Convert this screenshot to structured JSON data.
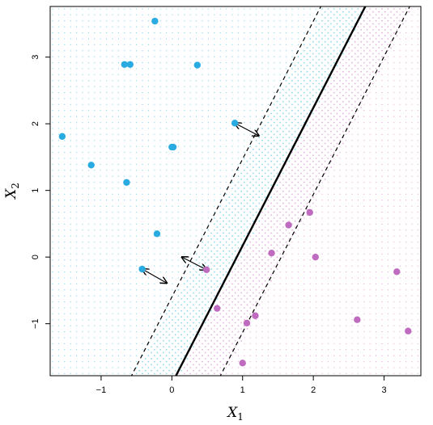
{
  "chart_data": {
    "type": "scatter",
    "title": "",
    "xlabel": "X",
    "xlabel_sub": "1",
    "ylabel": "X",
    "ylabel_sub": "2",
    "xlim": [
      -1.72,
      3.52
    ],
    "ylim": [
      -1.78,
      3.76
    ],
    "xticks": [
      -1,
      0,
      1,
      2,
      3
    ],
    "xtick_labels": [
      "−1",
      "0",
      "1",
      "2",
      "3"
    ],
    "yticks": [
      -1,
      0,
      1,
      2,
      3
    ],
    "ytick_labels": [
      "−1",
      "0",
      "1",
      "2",
      "3"
    ],
    "grid": false,
    "colors": {
      "blue": "#29abe2",
      "purple": "#bf6bbf",
      "blue_region_dot": "#8fd8ec",
      "purple_region_dot": "#e6b2dd",
      "axis": "#000000"
    },
    "hyperplane": {
      "slope": 2.07,
      "intercept": -1.9,
      "margin_intercept_offset": 1.3
    },
    "series": [
      {
        "class": "blue",
        "points": [
          {
            "x": -0.24,
            "y": 3.54
          },
          {
            "x": -0.67,
            "y": 2.89
          },
          {
            "x": -0.59,
            "y": 2.89
          },
          {
            "x": 0.36,
            "y": 2.88
          },
          {
            "x": -1.55,
            "y": 1.81
          },
          {
            "x": 0.0,
            "y": 1.65
          },
          {
            "x": 0.02,
            "y": 1.65
          },
          {
            "x": -1.14,
            "y": 1.38
          },
          {
            "x": -0.64,
            "y": 1.12
          },
          {
            "x": -0.21,
            "y": 0.35
          },
          {
            "x": -0.42,
            "y": -0.18
          },
          {
            "x": 0.89,
            "y": 2.01
          }
        ]
      },
      {
        "class": "purple",
        "points": [
          {
            "x": 1.95,
            "y": 0.67
          },
          {
            "x": 1.65,
            "y": 0.48
          },
          {
            "x": 1.41,
            "y": 0.06
          },
          {
            "x": 2.03,
            "y": 0.0
          },
          {
            "x": 0.49,
            "y": -0.19
          },
          {
            "x": 3.18,
            "y": -0.22
          },
          {
            "x": 0.64,
            "y": -0.77
          },
          {
            "x": 1.18,
            "y": -0.88
          },
          {
            "x": 1.06,
            "y": -0.99
          },
          {
            "x": 2.62,
            "y": -0.94
          },
          {
            "x": 3.34,
            "y": -1.11
          },
          {
            "x": 1.0,
            "y": -1.59
          }
        ]
      }
    ],
    "margin_arrows": [
      {
        "from": {
          "x": 0.89,
          "y": 2.01
        },
        "to": {
          "x": 1.23,
          "y": 1.82
        }
      },
      {
        "from": {
          "x": -0.42,
          "y": -0.18
        },
        "to": {
          "x": -0.07,
          "y": -0.39
        }
      },
      {
        "from": {
          "x": 0.49,
          "y": -0.19
        },
        "to": {
          "x": 0.14,
          "y": 0.0
        }
      }
    ]
  }
}
